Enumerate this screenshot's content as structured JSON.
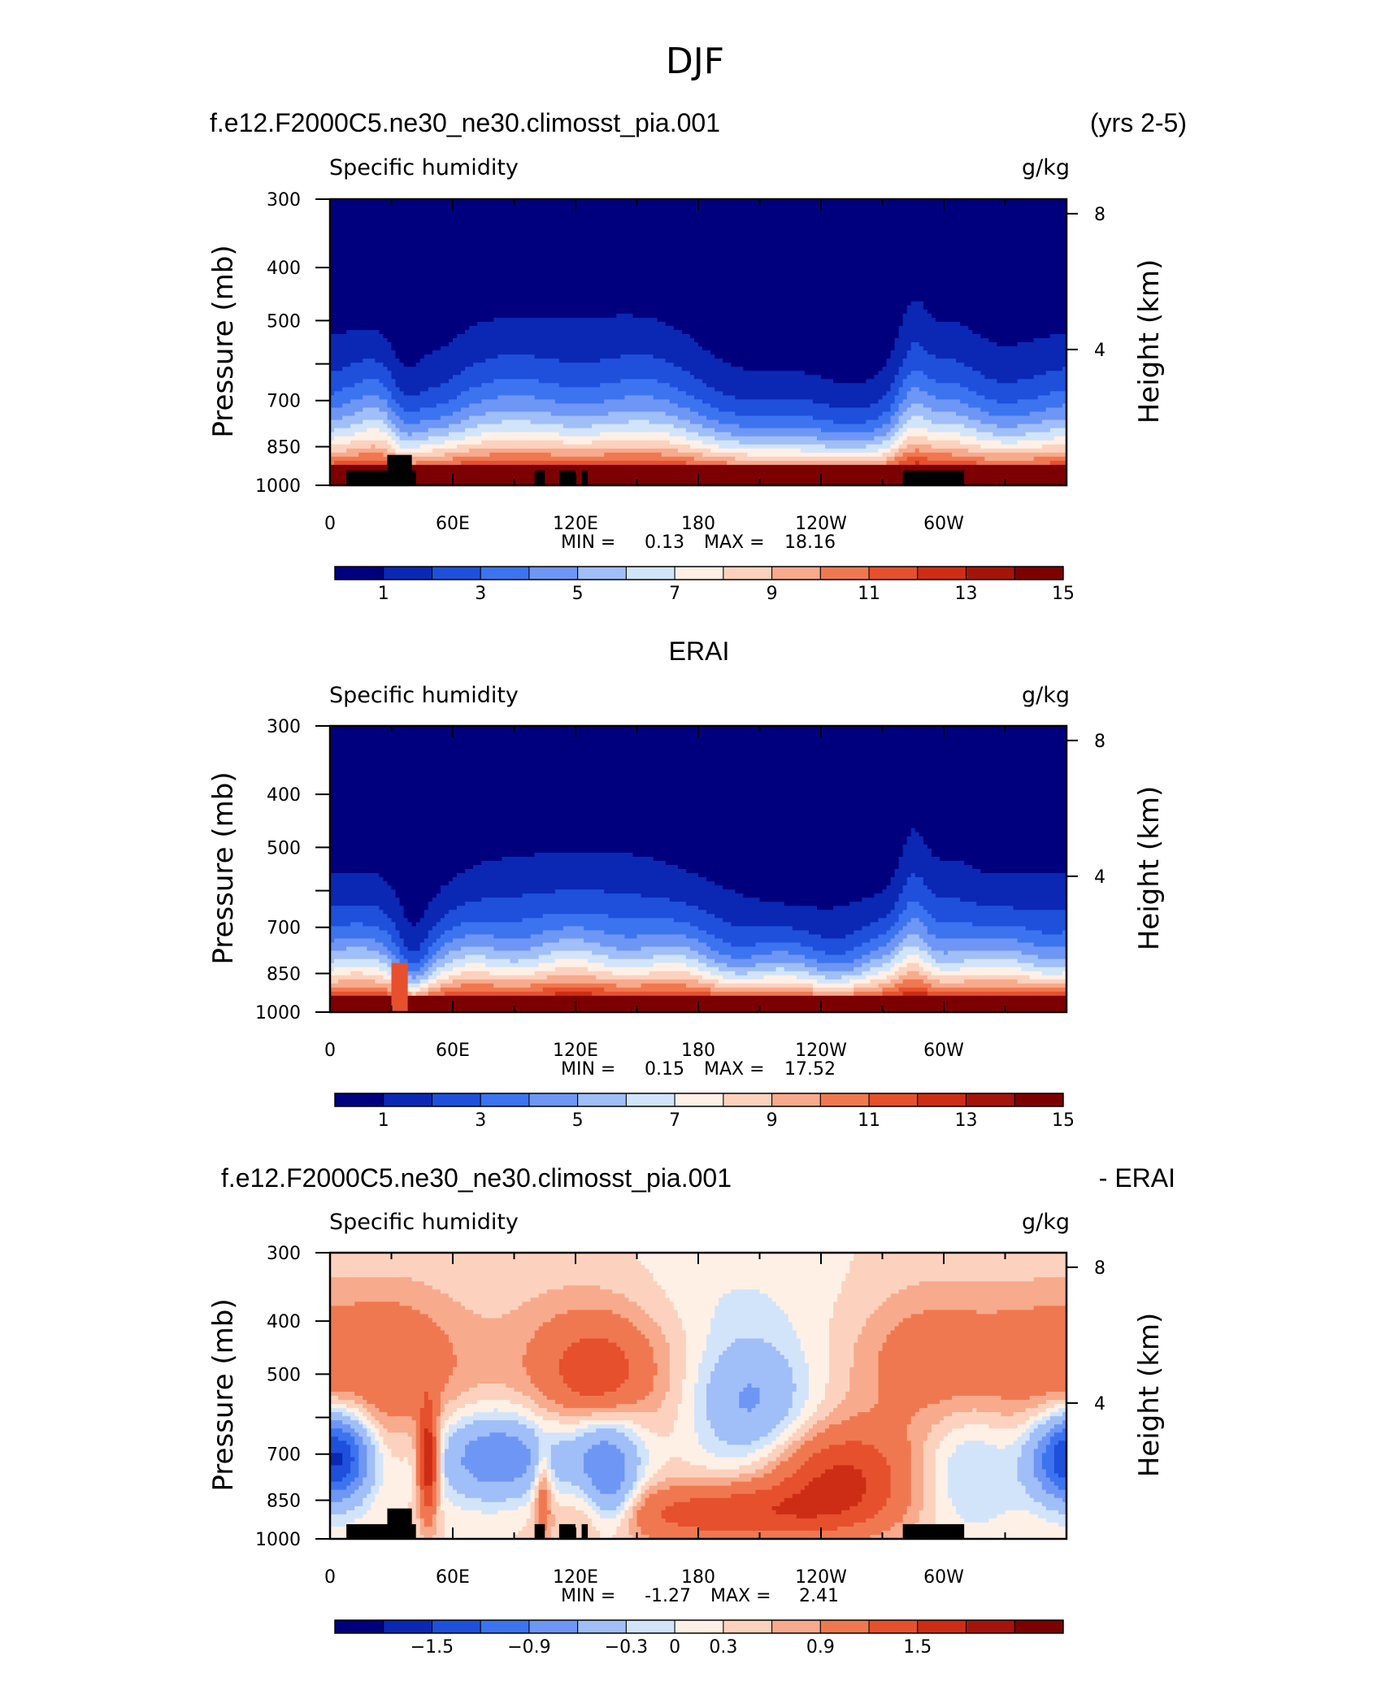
{
  "figure": {
    "title": "DJF"
  },
  "chart_data": [
    {
      "type": "heatmap",
      "id": "model",
      "header_left": "f.e12.F2000C5.ne30_ne30.climosst_pia.001",
      "header_right": "(yrs 2-5)",
      "variable": "Specific humidity",
      "units": "g/kg",
      "ylabel": "Pressure (mb)",
      "y2label": "Height (km)",
      "x_ticklabels": [
        "0",
        "60E",
        "120E",
        "180",
        "120W",
        "60W"
      ],
      "x_tick_lon": [
        0,
        60,
        120,
        180,
        240,
        300
      ],
      "xlim": [
        0,
        360
      ],
      "y_ticklabels": [
        "300",
        "400",
        "500",
        "700",
        "850",
        "1000"
      ],
      "y_tick_p": [
        300,
        400,
        500,
        600,
        700,
        850,
        1000
      ],
      "y_tick_labelled": [
        300,
        400,
        500,
        700,
        850,
        1000
      ],
      "ylim_p": [
        1000,
        300
      ],
      "y2_ticklabels": [
        "8",
        "4"
      ],
      "y2_tick_km": [
        8,
        4
      ],
      "min_label": "MIN =",
      "min_value": "0.13",
      "max_label": "MAX =",
      "max_value": "18.16",
      "colorbar_labels": [
        "1",
        "3",
        "5",
        "7",
        "9",
        "11",
        "13",
        "15"
      ],
      "colorbar_levels": [
        0,
        1,
        2,
        3,
        4,
        5,
        6,
        7,
        8,
        9,
        10,
        11,
        12,
        13,
        14,
        15,
        16
      ],
      "field": "q",
      "topography": true
    },
    {
      "type": "heatmap",
      "id": "obs",
      "header_center": "ERAI",
      "variable": "Specific humidity",
      "units": "g/kg",
      "ylabel": "Pressure (mb)",
      "y2label": "Height (km)",
      "x_ticklabels": [
        "0",
        "60E",
        "120E",
        "180",
        "120W",
        "60W"
      ],
      "x_tick_lon": [
        0,
        60,
        120,
        180,
        240,
        300
      ],
      "xlim": [
        0,
        360
      ],
      "y_ticklabels": [
        "300",
        "400",
        "500",
        "700",
        "850",
        "1000"
      ],
      "y_tick_p": [
        300,
        400,
        500,
        600,
        700,
        850,
        1000
      ],
      "y_tick_labelled": [
        300,
        400,
        500,
        700,
        850,
        1000
      ],
      "ylim_p": [
        1000,
        300
      ],
      "y2_ticklabels": [
        "8",
        "4"
      ],
      "y2_tick_km": [
        8,
        4
      ],
      "min_label": "MIN =",
      "min_value": "0.15",
      "max_label": "MAX =",
      "max_value": "17.52",
      "colorbar_labels": [
        "1",
        "3",
        "5",
        "7",
        "9",
        "11",
        "13",
        "15"
      ],
      "colorbar_levels": [
        0,
        1,
        2,
        3,
        4,
        5,
        6,
        7,
        8,
        9,
        10,
        11,
        12,
        13,
        14,
        15,
        16
      ],
      "field": "q_obs",
      "topography": false
    },
    {
      "type": "heatmap",
      "id": "diff",
      "header_left": "f.e12.F2000C5.ne30_ne30.climosst_pia.001",
      "header_right": "- ERAI",
      "variable": "Specific humidity",
      "units": "g/kg",
      "ylabel": "Pressure (mb)",
      "y2label": "Height (km)",
      "x_ticklabels": [
        "0",
        "60E",
        "120E",
        "180",
        "120W",
        "60W"
      ],
      "x_tick_lon": [
        0,
        60,
        120,
        180,
        240,
        300
      ],
      "xlim": [
        0,
        360
      ],
      "y_ticklabels": [
        "300",
        "400",
        "500",
        "700",
        "850",
        "1000"
      ],
      "y_tick_p": [
        300,
        400,
        500,
        600,
        700,
        850,
        1000
      ],
      "y_tick_labelled": [
        300,
        400,
        500,
        700,
        850,
        1000
      ],
      "ylim_p": [
        1000,
        300
      ],
      "y2_ticklabels": [
        "8",
        "4"
      ],
      "y2_tick_km": [
        8,
        4
      ],
      "min_label": "MIN =",
      "min_value": "-1.27",
      "max_label": "MAX =",
      "max_value": "2.41",
      "colorbar_labels": [
        "-1.5",
        "-0.9",
        "-0.3",
        "0",
        "0.3",
        "0.9",
        "1.5"
      ],
      "colorbar_levels": [
        -2.1,
        -1.8,
        -1.5,
        -1.2,
        -0.9,
        -0.6,
        -0.3,
        -0.15,
        0,
        0.15,
        0.3,
        0.6,
        0.9,
        1.2,
        1.5,
        1.8,
        2.1
      ],
      "field": "dq",
      "topography": true
    }
  ],
  "colormap": [
    "#00007f",
    "#0a28b4",
    "#1e50dc",
    "#3c74f0",
    "#6e96f5",
    "#a0bef7",
    "#d2e4fa",
    "#fff0e6",
    "#fcd2be",
    "#f8aa8c",
    "#f07850",
    "#e6502d",
    "#cd2d14",
    "#a5140a",
    "#7d0000"
  ],
  "topography_lon_ranges": [
    [
      8,
      42
    ],
    [
      100,
      105
    ],
    [
      112,
      120
    ],
    [
      123,
      126
    ],
    [
      280,
      310
    ]
  ],
  "topography_peak_lon": [
    28,
    40
  ],
  "topography_peak_p": 880,
  "topography_base_p": 940
}
